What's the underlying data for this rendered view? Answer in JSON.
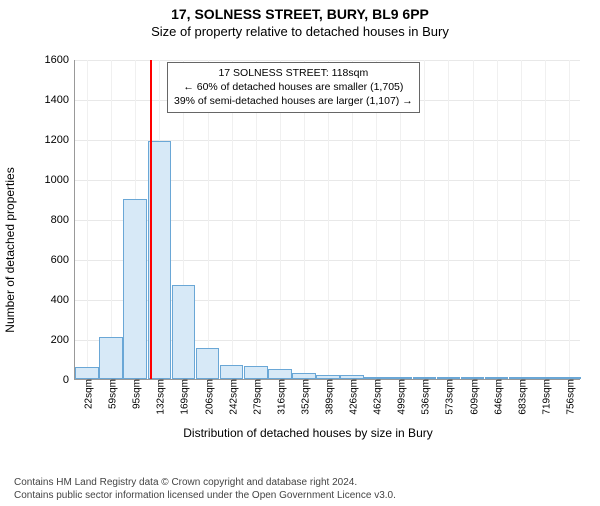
{
  "title": "17, SOLNESS STREET, BURY, BL9 6PP",
  "subtitle": "Size of property relative to detached houses in Bury",
  "chart": {
    "type": "histogram",
    "ylabel": "Number of detached properties",
    "xlabel": "Distribution of detached houses by size in Bury",
    "ylim": [
      0,
      1600
    ],
    "ytick_step": 200,
    "background_color": "#ffffff",
    "grid_color": "#e8e8e8",
    "bar_fill": "#d7e9f7",
    "bar_border": "#6aa7d6",
    "vline_color": "#ff0000",
    "vline_x": 118,
    "categories": [
      "22sqm",
      "59sqm",
      "95sqm",
      "132sqm",
      "169sqm",
      "206sqm",
      "242sqm",
      "279sqm",
      "316sqm",
      "352sqm",
      "389sqm",
      "426sqm",
      "462sqm",
      "499sqm",
      "536sqm",
      "573sqm",
      "609sqm",
      "646sqm",
      "683sqm",
      "719sqm",
      "756sqm"
    ],
    "values": [
      60,
      210,
      900,
      1190,
      470,
      155,
      70,
      65,
      50,
      30,
      22,
      22,
      10,
      6,
      6,
      4,
      2,
      2,
      2,
      2,
      2
    ],
    "bar_width": 0.98
  },
  "legend": {
    "line1": "17 SOLNESS STREET: 118sqm",
    "line2": "← 60% of detached houses are smaller (1,705)",
    "line3": "39% of semi-detached houses are larger (1,107) →"
  },
  "footer": {
    "line1": "Contains HM Land Registry data © Crown copyright and database right 2024.",
    "line2": "Contains public sector information licensed under the Open Government Licence v3.0."
  }
}
